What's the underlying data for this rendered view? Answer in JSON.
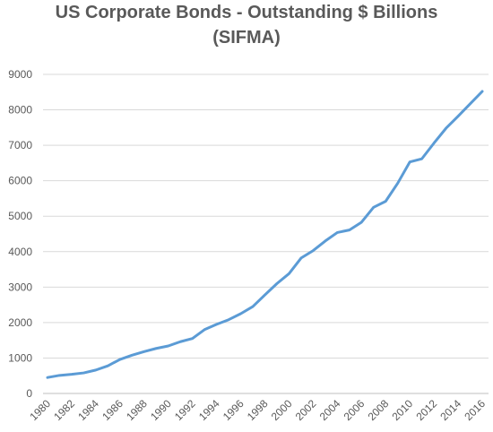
{
  "chart_data": {
    "type": "line",
    "title_line_1": "US Corporate Bonds - Outstanding $ Billions",
    "title_line_2": "(SIFMA)",
    "xlabel": "",
    "ylabel": "",
    "ylim": [
      0,
      9000
    ],
    "y_ticks": [
      0,
      1000,
      2000,
      3000,
      4000,
      5000,
      6000,
      7000,
      8000,
      9000
    ],
    "x_tick_labels": [
      "1980",
      "1982",
      "1984",
      "1986",
      "1988",
      "1990",
      "1992",
      "1994",
      "1996",
      "1998",
      "2000",
      "2002",
      "2004",
      "2006",
      "2008",
      "2010",
      "2012",
      "2014",
      "2016"
    ],
    "grid": true,
    "line_color": "#5b9bd5",
    "series": [
      {
        "x": [
          1980,
          1981,
          1982,
          1983,
          1984,
          1985,
          1986,
          1987,
          1988,
          1989,
          1990,
          1991,
          1992,
          1993,
          1994,
          1995,
          1996,
          1997,
          1998,
          1999,
          2000,
          2001,
          2002,
          2003,
          2004,
          2005,
          2006,
          2007,
          2008,
          2009,
          2010,
          2011,
          2012,
          2013,
          2014,
          2015,
          2016
        ],
        "values": [
          450,
          510,
          540,
          580,
          660,
          780,
          960,
          1080,
          1180,
          1270,
          1340,
          1460,
          1550,
          1800,
          1950,
          2080,
          2250,
          2450,
          2780,
          3100,
          3380,
          3820,
          4030,
          4300,
          4540,
          4610,
          4830,
          5250,
          5420,
          5930,
          6530,
          6620,
          7060,
          7480,
          7820,
          8170,
          8520
        ]
      }
    ]
  }
}
